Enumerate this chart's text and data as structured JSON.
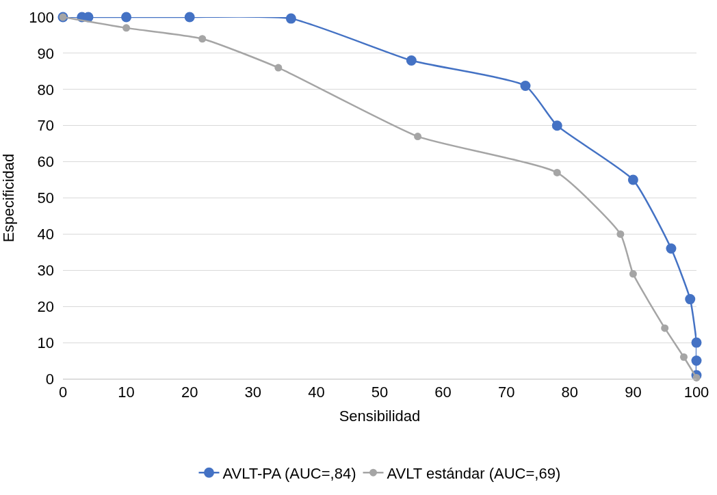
{
  "chart_data": {
    "type": "line",
    "xlabel": "Sensibilidad",
    "ylabel": "Especificidad",
    "xlim": [
      0,
      100
    ],
    "xticks": [
      0,
      10,
      20,
      30,
      40,
      50,
      60,
      70,
      80,
      90,
      100
    ],
    "ylim": [
      0,
      100
    ],
    "yticks": [
      0,
      10,
      20,
      30,
      40,
      50,
      60,
      70,
      80,
      90,
      100
    ],
    "grid": "y",
    "legend": "bottom",
    "marker": "circle",
    "line_style": "solid",
    "series": [
      {
        "name": "AVLT-PA (AUC=,84)",
        "color": "#4472c4",
        "x": [
          0,
          3,
          4,
          10,
          20,
          36,
          55,
          73,
          78,
          90,
          96,
          99,
          100,
          100,
          100
        ],
        "values": [
          100,
          100,
          100,
          100,
          100,
          99.6,
          88,
          81,
          70,
          55,
          36,
          22,
          10,
          5,
          1
        ]
      },
      {
        "name": "AVLT estándar (AUC=,69)",
        "color": "#a5a5a5",
        "x": [
          0,
          10,
          22,
          34,
          56,
          78,
          88,
          90,
          95,
          98,
          100
        ],
        "values": [
          100,
          97,
          94,
          86,
          67,
          57,
          40,
          29,
          14,
          6,
          0.3
        ]
      }
    ]
  }
}
